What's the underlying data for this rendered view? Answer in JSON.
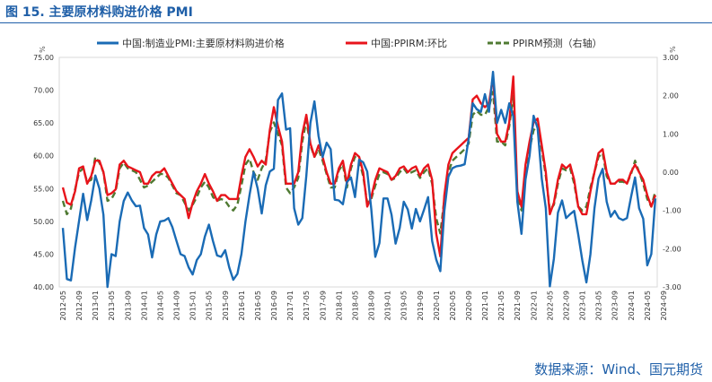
{
  "header": {
    "title": "图 15. 主要原材料购进价格 PMI"
  },
  "footer": {
    "source": "数据来源：Wind、国元期货"
  },
  "chart_data": {
    "type": "line",
    "left_unit": "%",
    "right_unit": "%",
    "y_left": {
      "min": 40,
      "max": 75,
      "ticks": [
        "40.00",
        "45.00",
        "50.00",
        "55.00",
        "60.00",
        "65.00",
        "70.00",
        "75.00"
      ]
    },
    "y_right": {
      "min": -3,
      "max": 3,
      "ticks": [
        "-3.00",
        "-2.00",
        "-1.00",
        "0.00",
        "1.00",
        "2.00",
        "3.00"
      ]
    },
    "x_labels": [
      "2012-05",
      "2012-09",
      "2013-01",
      "2013-05",
      "2013-09",
      "2014-01",
      "2014-05",
      "2014-09",
      "2015-01",
      "2015-05",
      "2015-09",
      "2016-01",
      "2016-05",
      "2016-09",
      "2017-01",
      "2017-05",
      "2017-09",
      "2018-01",
      "2018-05",
      "2018-09",
      "2019-01",
      "2019-05",
      "2019-09",
      "2020-01",
      "2020-05",
      "2020-09",
      "2021-01",
      "2021-05",
      "2021-09",
      "2022-01",
      "2022-05",
      "2022-09",
      "2023-01",
      "2023-05",
      "2023-09",
      "2024-01",
      "2024-05",
      "2024-09"
    ],
    "start_label": "2012-05",
    "colors": {
      "pmi": "#1a6bb5",
      "ppirm": "#e8141b",
      "forecast": "#4f7a32"
    },
    "series": [
      {
        "name": "中国:制造业PMI:主要原材料购进价格",
        "axis": "left",
        "style": "solid",
        "values": [
          49.0,
          41.2,
          41.0,
          46.0,
          50.1,
          54.2,
          50.2,
          53.2,
          57.0,
          55.0,
          51.0,
          40.0,
          45.0,
          44.7,
          50.0,
          53.1,
          54.4,
          53.2,
          52.3,
          52.4,
          49.0,
          48.0,
          44.5,
          48.0,
          50.0,
          50.1,
          50.5,
          49.1,
          47.0,
          45.0,
          44.7,
          43.0,
          41.9,
          44.1,
          45.0,
          47.7,
          49.5,
          47.0,
          44.8,
          44.6,
          45.6,
          43.0,
          41.1,
          42.0,
          45.0,
          50.0,
          54.0,
          57.5,
          55.0,
          51.2,
          55.5,
          57.6,
          58.0,
          68.5,
          69.5,
          64.0,
          64.2,
          52.0,
          49.5,
          50.5,
          57.0,
          65.0,
          68.3,
          63.0,
          59.8,
          62.0,
          61.0,
          53.3,
          53.2,
          52.6,
          56.0,
          56.7,
          53.7,
          59.4,
          59.0,
          57.6,
          51.9,
          44.6,
          46.7,
          53.5,
          53.5,
          51.0,
          46.6,
          49.0,
          53.0,
          51.8,
          48.9,
          51.9,
          50.0,
          51.8,
          53.7,
          47.0,
          44.2,
          42.4,
          51.6,
          56.8,
          58.1,
          58.4,
          58.5,
          58.7,
          62.6,
          68.0,
          67.1,
          66.7,
          69.4,
          66.7,
          72.8,
          65.0,
          67.0,
          65.0,
          68.0,
          66.0,
          53.0,
          48.1,
          56.4,
          60.0,
          66.1,
          64.2,
          56.5,
          52.0,
          40.1,
          44.3,
          51.3,
          53.2,
          50.5,
          51.1,
          51.6,
          48.0,
          44.0,
          40.7,
          45.0,
          52.0,
          56.5,
          58.0,
          53.0,
          50.7,
          51.6,
          50.5,
          50.2,
          50.5,
          53.7,
          56.7,
          52.0,
          50.4,
          43.3,
          45.0,
          53.5
        ]
      },
      {
        "name": "中国:PPIRM:环比",
        "axis": "right",
        "style": "solid",
        "values": [
          -0.4,
          -0.8,
          -0.85,
          -0.5,
          0.1,
          0.15,
          -0.3,
          -0.1,
          0.3,
          0.3,
          0.0,
          -0.6,
          -0.55,
          -0.45,
          0.2,
          0.3,
          0.15,
          0.1,
          0.05,
          0.0,
          -0.3,
          -0.3,
          -0.1,
          0.0,
          0.0,
          0.1,
          -0.1,
          -0.3,
          -0.5,
          -0.6,
          -0.7,
          -1.2,
          -0.8,
          -0.5,
          -0.3,
          -0.05,
          -0.3,
          -0.5,
          -0.75,
          -0.6,
          -0.6,
          -0.7,
          -0.7,
          -0.7,
          -0.1,
          0.4,
          0.6,
          0.4,
          0.15,
          0.3,
          0.2,
          1.1,
          1.7,
          1.2,
          0.8,
          -0.3,
          -0.3,
          -0.3,
          0.0,
          1.0,
          1.5,
          0.75,
          0.4,
          0.7,
          0.4,
          0.0,
          -0.3,
          -0.3,
          0.1,
          0.3,
          -0.3,
          0.2,
          0.5,
          0.4,
          0.0,
          -0.9,
          -0.65,
          -0.2,
          0.1,
          0.05,
          0.0,
          -0.2,
          -0.1,
          0.1,
          0.15,
          0.0,
          0.1,
          0.15,
          -0.1,
          0.1,
          0.2,
          -0.2,
          -1.6,
          -2.2,
          -0.6,
          0.2,
          0.5,
          0.6,
          0.7,
          0.8,
          0.9,
          1.9,
          2.0,
          1.8,
          1.7,
          1.8,
          2.5,
          1.0,
          0.8,
          0.8,
          1.3,
          2.5,
          -0.5,
          -0.9,
          0.2,
          0.8,
          1.3,
          1.4,
          0.7,
          0.0,
          -1.1,
          -0.8,
          -0.2,
          0.2,
          0.1,
          0.2,
          -0.2,
          -0.9,
          -1.1,
          -1.1,
          -0.5,
          0.0,
          0.5,
          0.6,
          0.0,
          -0.3,
          -0.3,
          -0.2,
          -0.2,
          -0.3,
          0.0,
          0.2,
          0.0,
          -0.2,
          -0.6,
          -0.9,
          -0.6
        ]
      },
      {
        "name": "PPIRM预测（右轴）",
        "axis": "right",
        "style": "dashed",
        "values": [
          -0.75,
          -1.1,
          -0.95,
          -0.45,
          0.0,
          0.1,
          -0.25,
          -0.2,
          0.4,
          0.25,
          0.0,
          -0.75,
          -0.7,
          -0.5,
          0.1,
          0.25,
          0.1,
          0.05,
          0.0,
          -0.2,
          -0.4,
          -0.35,
          -0.25,
          -0.15,
          -0.05,
          -0.05,
          -0.15,
          -0.35,
          -0.55,
          -0.6,
          -0.8,
          -1.0,
          -0.85,
          -0.65,
          -0.4,
          -0.25,
          -0.4,
          -0.65,
          -0.75,
          -0.7,
          -0.75,
          -0.9,
          -1.0,
          -0.85,
          -0.35,
          0.2,
          0.35,
          0.0,
          -0.2,
          0.1,
          0.3,
          1.05,
          1.3,
          1.0,
          0.7,
          -0.4,
          -0.55,
          -0.4,
          -0.15,
          0.8,
          1.35,
          0.7,
          0.4,
          0.6,
          0.3,
          -0.05,
          -0.4,
          -0.4,
          0.05,
          0.2,
          -0.4,
          0.1,
          0.4,
          0.3,
          -0.1,
          -0.8,
          -0.7,
          -0.35,
          -0.05,
          0.0,
          -0.05,
          -0.2,
          -0.15,
          0.0,
          0.1,
          -0.05,
          0.0,
          0.05,
          -0.15,
          0.0,
          0.1,
          -0.3,
          -1.2,
          -1.6,
          -0.7,
          0.0,
          0.3,
          0.4,
          0.5,
          0.6,
          0.75,
          1.5,
          1.6,
          1.5,
          1.5,
          1.7,
          2.1,
          0.8,
          0.8,
          0.7,
          1.2,
          2.0,
          -0.6,
          -1.0,
          0.0,
          0.6,
          1.1,
          1.2,
          0.6,
          -0.1,
          -1.0,
          -0.85,
          -0.3,
          0.1,
          0.05,
          0.1,
          -0.3,
          -0.9,
          -1.0,
          -0.9,
          -0.4,
          0.0,
          0.4,
          0.5,
          -0.1,
          -0.3,
          -0.3,
          -0.25,
          -0.25,
          -0.3,
          -0.05,
          0.3,
          0.0,
          -0.3,
          -0.7,
          -0.9,
          -0.5
        ]
      }
    ]
  }
}
